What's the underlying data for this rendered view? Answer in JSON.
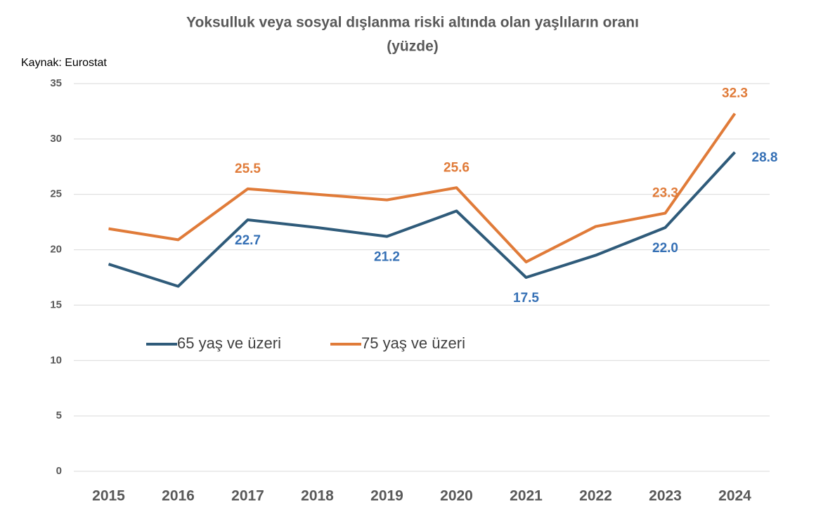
{
  "chart_data": {
    "type": "line",
    "title": "Yoksulluk veya sosyal dışlanma riski altında olan yaşlıların oranı",
    "subtitle": "(yüzde)",
    "source": "Kaynak: Eurostat",
    "categories": [
      "2015",
      "2016",
      "2017",
      "2018",
      "2019",
      "2020",
      "2021",
      "2022",
      "2023",
      "2024"
    ],
    "series": [
      {
        "name": "65 yaş ve üzeri",
        "color": "#2f5b7a",
        "label_color": "#3570b5",
        "values": [
          18.7,
          16.7,
          22.7,
          22.0,
          21.2,
          23.5,
          17.5,
          19.5,
          22.0,
          28.8
        ],
        "value_labels": [
          null,
          null,
          "22.7",
          null,
          "21.2",
          null,
          "17.5",
          null,
          "22.0",
          "28.8"
        ]
      },
      {
        "name": "75 yaş ve üzeri",
        "color": "#e07b39",
        "label_color": "#e07b39",
        "values": [
          21.9,
          20.9,
          25.5,
          25.0,
          24.5,
          25.6,
          18.9,
          22.1,
          23.3,
          32.3
        ],
        "value_labels": [
          null,
          null,
          "25.5",
          null,
          null,
          "25.6",
          null,
          null,
          "23.3",
          "32.3"
        ]
      }
    ],
    "ylim": [
      0,
      35
    ],
    "yticks": [
      0,
      5,
      10,
      15,
      20,
      25,
      30,
      35
    ],
    "grid": true
  }
}
